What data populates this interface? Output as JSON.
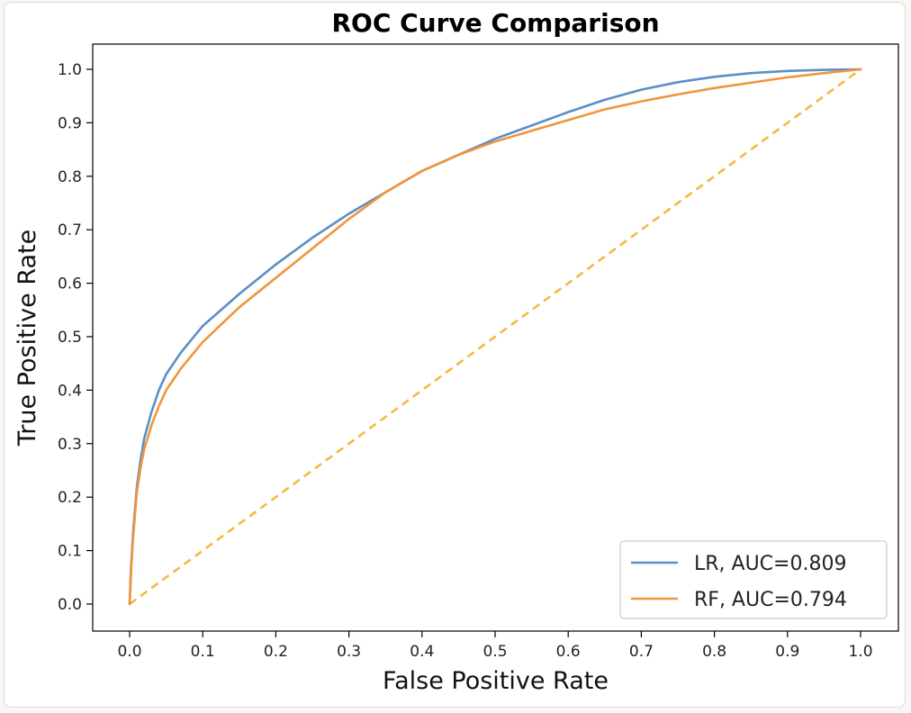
{
  "chart_data": {
    "type": "line",
    "title": "ROC Curve Comparison",
    "xlabel": "False Positive Rate",
    "ylabel": "True Positive Rate",
    "xlim": [
      0.0,
      1.0
    ],
    "ylim": [
      0.0,
      1.0
    ],
    "xticks": [
      "0.0",
      "0.1",
      "0.2",
      "0.3",
      "0.4",
      "0.5",
      "0.6",
      "0.7",
      "0.8",
      "0.9",
      "1.0"
    ],
    "yticks": [
      "0.0",
      "0.1",
      "0.2",
      "0.3",
      "0.4",
      "0.5",
      "0.6",
      "0.7",
      "0.8",
      "0.9",
      "1.0"
    ],
    "grid": false,
    "legend_position": "lower-right",
    "series": [
      {
        "name": "LR, AUC=0.809",
        "color": "#5b8fc7",
        "style": "solid",
        "x": [
          0.0,
          0.002,
          0.005,
          0.01,
          0.015,
          0.02,
          0.03,
          0.04,
          0.05,
          0.07,
          0.1,
          0.15,
          0.2,
          0.25,
          0.3,
          0.35,
          0.4,
          0.45,
          0.5,
          0.55,
          0.6,
          0.65,
          0.7,
          0.75,
          0.8,
          0.85,
          0.9,
          0.95,
          1.0
        ],
        "y": [
          0.0,
          0.07,
          0.14,
          0.22,
          0.27,
          0.31,
          0.36,
          0.4,
          0.43,
          0.47,
          0.52,
          0.58,
          0.635,
          0.685,
          0.73,
          0.77,
          0.81,
          0.84,
          0.87,
          0.895,
          0.92,
          0.943,
          0.962,
          0.976,
          0.986,
          0.993,
          0.997,
          0.999,
          1.0
        ]
      },
      {
        "name": "RF, AUC=0.794",
        "color": "#f0953d",
        "style": "solid",
        "x": [
          0.0,
          0.002,
          0.005,
          0.01,
          0.015,
          0.02,
          0.03,
          0.04,
          0.05,
          0.07,
          0.1,
          0.15,
          0.2,
          0.25,
          0.3,
          0.35,
          0.4,
          0.45,
          0.5,
          0.55,
          0.6,
          0.65,
          0.7,
          0.75,
          0.8,
          0.85,
          0.9,
          0.95,
          1.0
        ],
        "y": [
          0.0,
          0.06,
          0.13,
          0.21,
          0.255,
          0.29,
          0.335,
          0.37,
          0.4,
          0.44,
          0.49,
          0.555,
          0.61,
          0.665,
          0.72,
          0.77,
          0.81,
          0.84,
          0.865,
          0.885,
          0.905,
          0.925,
          0.94,
          0.953,
          0.965,
          0.975,
          0.985,
          0.993,
          1.0
        ]
      },
      {
        "name": "",
        "color": "#f5b942",
        "style": "dashed",
        "x": [
          0.0,
          1.0
        ],
        "y": [
          0.0,
          1.0
        ]
      }
    ]
  }
}
